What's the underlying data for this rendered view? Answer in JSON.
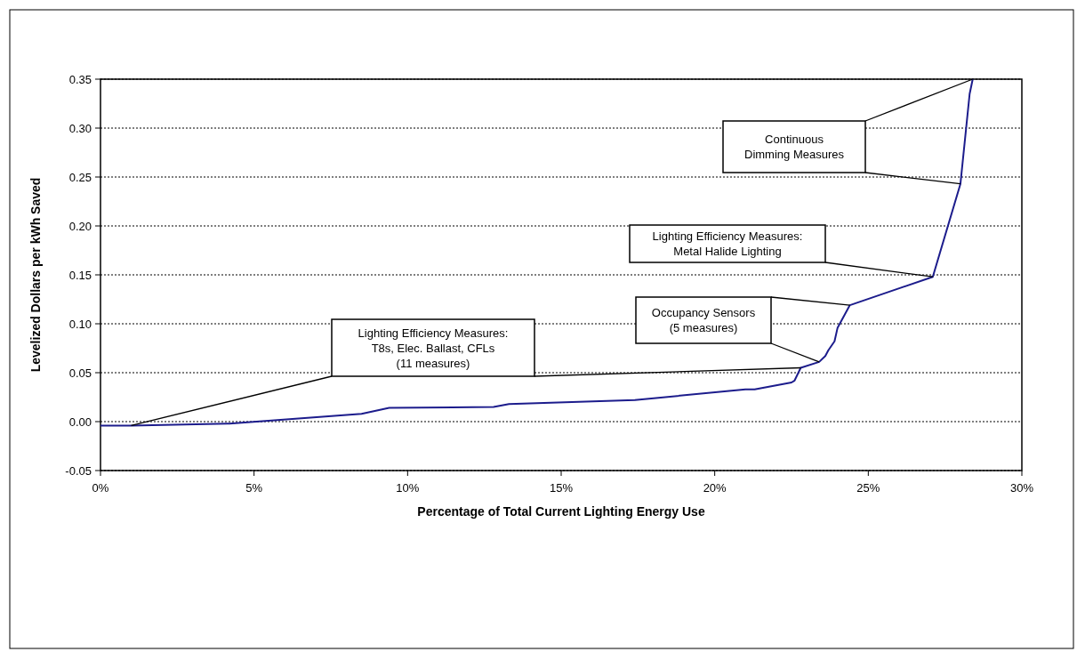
{
  "chart_data": {
    "type": "line",
    "xlabel": "Percentage of Total Current Lighting Energy Use",
    "ylabel": "Levelized Dollars per kWh Saved",
    "x": [
      0,
      1.0,
      4.2,
      8.5,
      9.4,
      12.8,
      13.3,
      17.4,
      21.0,
      21.3,
      22.5,
      22.6,
      22.8,
      23.4,
      23.6,
      23.7,
      23.9,
      24.0,
      24.4,
      27.1,
      28.0,
      28.3,
      28.4
    ],
    "series": [
      {
        "color": "#1c1c8c",
        "values": [
          -0.004,
          -0.004,
          -0.002,
          0.008,
          0.014,
          0.015,
          0.018,
          0.022,
          0.033,
          0.033,
          0.04,
          0.042,
          0.055,
          0.061,
          0.067,
          0.073,
          0.082,
          0.096,
          0.119,
          0.148,
          0.243,
          0.335,
          0.35
        ]
      }
    ],
    "xlim": [
      0,
      30
    ],
    "xticks": [
      {
        "value": 0,
        "label": "0%"
      },
      {
        "value": 5,
        "label": "5%"
      },
      {
        "value": 10,
        "label": "10%"
      },
      {
        "value": 15,
        "label": "15%"
      },
      {
        "value": 20,
        "label": "20%"
      },
      {
        "value": 25,
        "label": "25%"
      },
      {
        "value": 30,
        "label": "30%"
      }
    ],
    "ylim": [
      -0.05,
      0.35
    ],
    "yticks": [
      {
        "value": -0.05,
        "label": "-0.05"
      },
      {
        "value": 0,
        "label": "0.00"
      },
      {
        "value": 0.05,
        "label": "0.05"
      },
      {
        "value": 0.1,
        "label": "0.10"
      },
      {
        "value": 0.15,
        "label": "0.15"
      },
      {
        "value": 0.2,
        "label": "0.20"
      },
      {
        "value": 0.25,
        "label": "0.25"
      },
      {
        "value": 0.3,
        "label": "0.30"
      },
      {
        "value": 0.35,
        "label": "0.35"
      }
    ],
    "grid": "y",
    "line_style": "solid",
    "annotations": [
      "Lighting Efficiency Measures:\nT8s, Elec. Ballast, CFLs\n(11 measures)",
      "Occupancy Sensors\n(5 measures)",
      "Lighting Efficiency Measures:\nMetal Halide Lighting",
      "Continuous\nDimming Measures"
    ]
  }
}
